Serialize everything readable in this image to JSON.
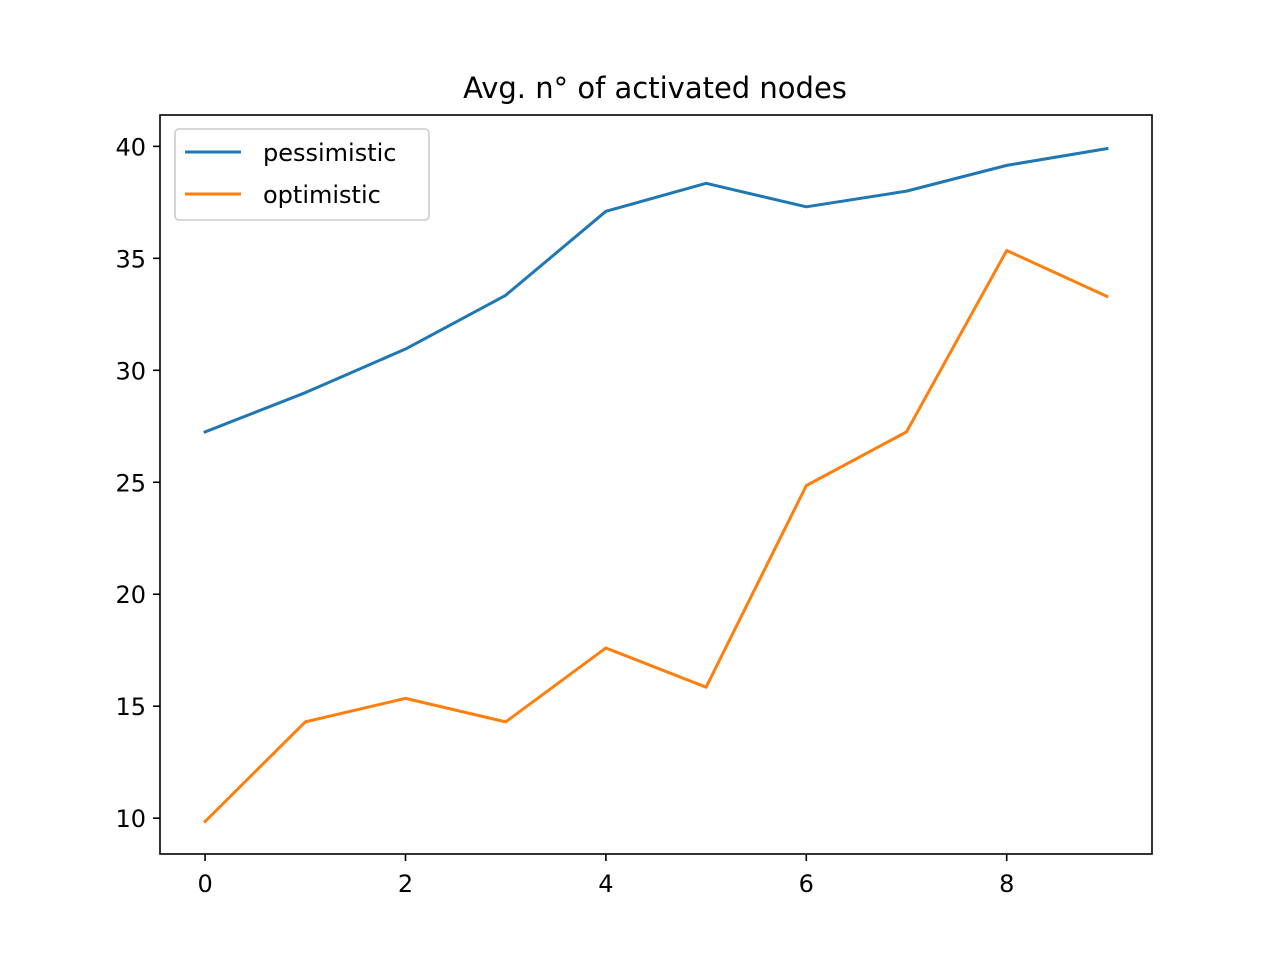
{
  "chart_data": {
    "type": "line",
    "title": "Avg. n° of activated nodes",
    "xlabel": "",
    "ylabel": "",
    "x": [
      0,
      1,
      2,
      3,
      4,
      5,
      6,
      7,
      8,
      9
    ],
    "xlim": [
      -0.45,
      9.45
    ],
    "ylim": [
      8.4,
      41.4
    ],
    "x_ticks": [
      0,
      2,
      4,
      6,
      8
    ],
    "y_ticks": [
      10,
      15,
      20,
      25,
      30,
      35,
      40
    ],
    "grid": false,
    "legend_position": "upper-left",
    "series": [
      {
        "name": "pessimistic",
        "color": "#1f77b4",
        "values": [
          27.25,
          29.0,
          30.95,
          33.35,
          37.1,
          38.35,
          37.3,
          38.0,
          39.15,
          39.9
        ]
      },
      {
        "name": "optimistic",
        "color": "#ff7f0e",
        "values": [
          9.85,
          14.3,
          15.35,
          14.3,
          17.6,
          15.85,
          24.85,
          27.25,
          35.35,
          33.3
        ]
      }
    ]
  }
}
